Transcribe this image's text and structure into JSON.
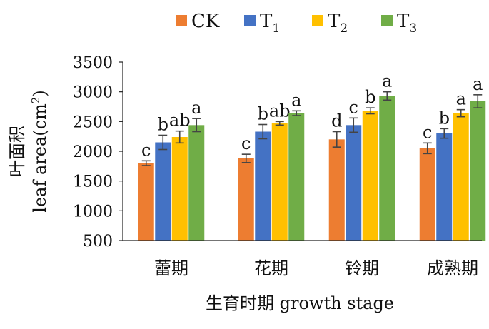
{
  "chart_data": {
    "type": "bar",
    "categories": [
      "蕾期",
      "花期",
      "铃期",
      "成熟期"
    ],
    "series": [
      {
        "name": "CK",
        "color": "#ED7D31",
        "values": [
          1800,
          1880,
          2200,
          2050
        ],
        "errors": [
          40,
          70,
          130,
          90
        ],
        "labels": [
          "c",
          "c",
          "d",
          "c"
        ]
      },
      {
        "name": "T1",
        "color": "#4472C4",
        "values": [
          2150,
          2330,
          2440,
          2300
        ],
        "errors": [
          120,
          120,
          120,
          80
        ],
        "labels": [
          "b",
          "b",
          "c",
          "b"
        ]
      },
      {
        "name": "T2",
        "color": "#FFC000",
        "values": [
          2240,
          2470,
          2680,
          2640
        ],
        "errors": [
          100,
          30,
          50,
          60
        ],
        "labels": [
          "ab",
          "ab",
          "b",
          "a"
        ]
      },
      {
        "name": "T3",
        "color": "#70AD47",
        "values": [
          2440,
          2640,
          2930,
          2840
        ],
        "errors": [
          110,
          40,
          70,
          110
        ],
        "labels": [
          "a",
          "a",
          "a",
          "a"
        ]
      }
    ],
    "legend": {
      "position": "top",
      "entries": [
        {
          "base": "CK",
          "sub": ""
        },
        {
          "base": "T",
          "sub": "1"
        },
        {
          "base": "T",
          "sub": "2"
        },
        {
          "base": "T",
          "sub": "3"
        }
      ]
    },
    "ylabel_cn": "叶面积",
    "ylabel_en": "leaf area(cm",
    "ylabel_sup": "2",
    "ylabel_close": ")",
    "xlabel": "生育时期 growth stage",
    "ylim": [
      500,
      3500
    ],
    "yticks": [
      500,
      1000,
      1500,
      2000,
      2500,
      3000,
      3500
    ],
    "grid": false
  }
}
